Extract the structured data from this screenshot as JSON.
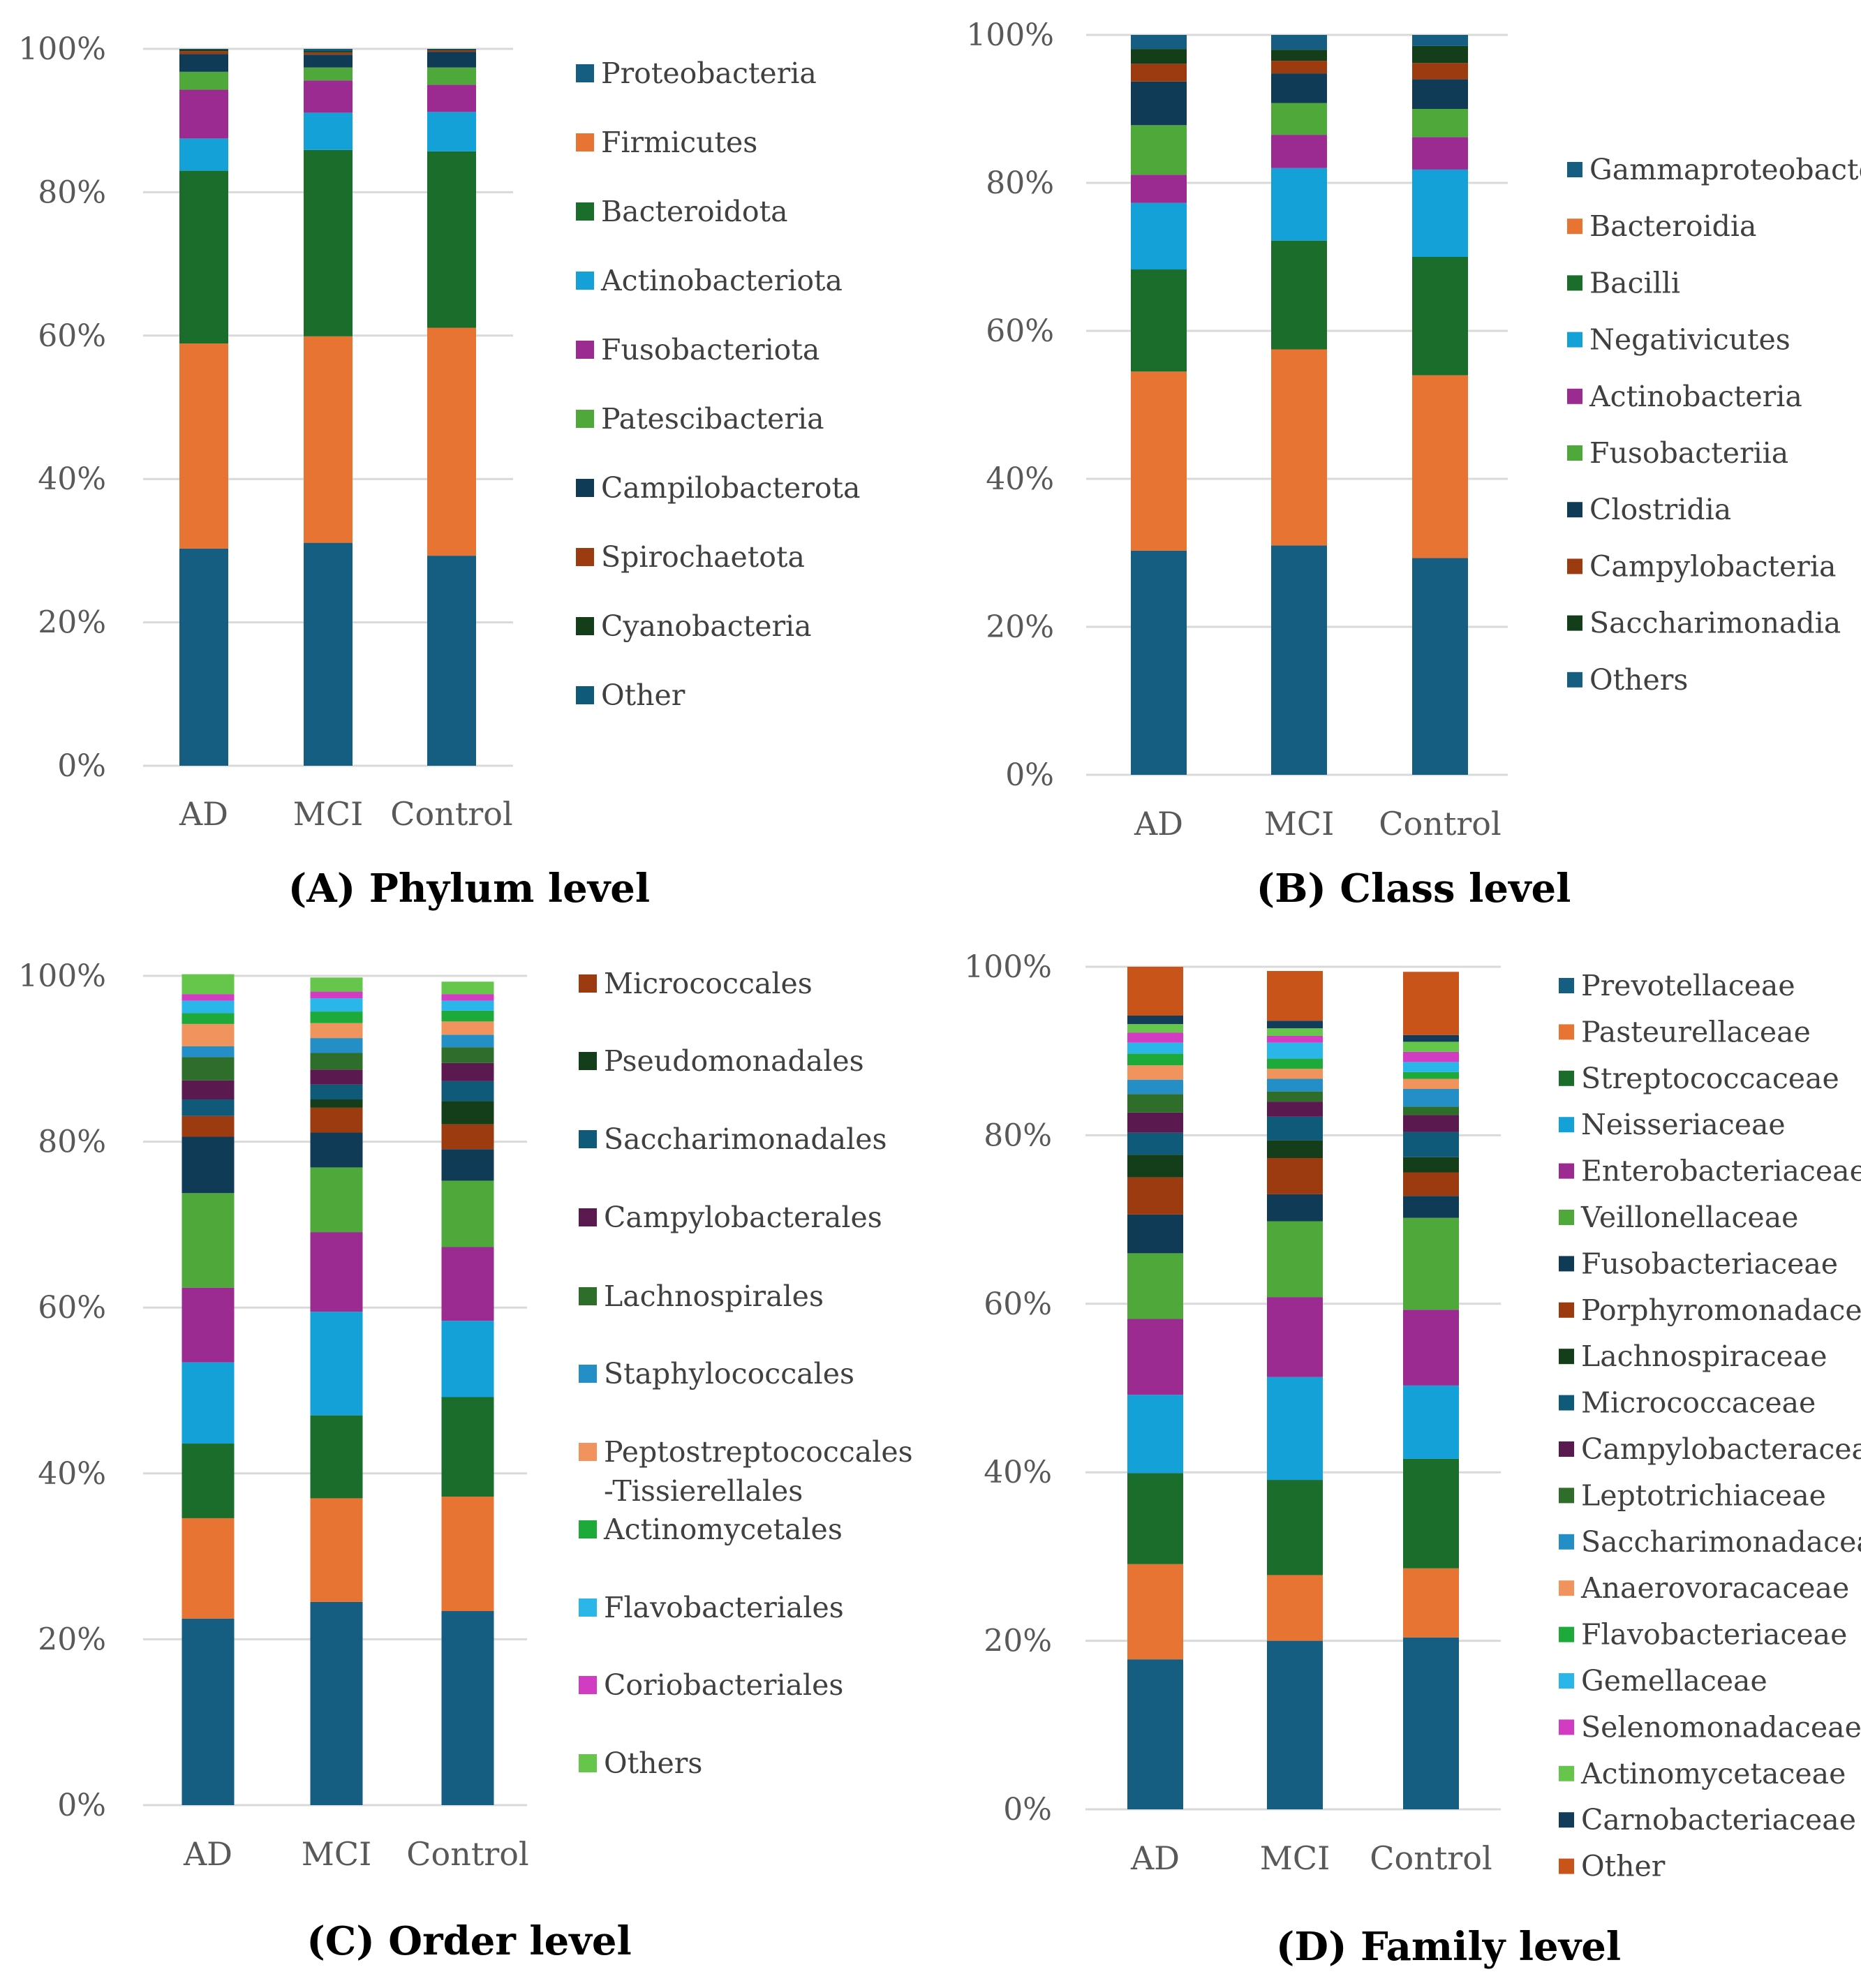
{
  "chart_data": [
    {
      "type": "bar",
      "stacked": true,
      "caption": "(A) Phylum level",
      "y_ticks": [
        "0%",
        "20%",
        "40%",
        "60%",
        "80%",
        "100%"
      ],
      "ylim": [
        0,
        100
      ],
      "categories": [
        "AD",
        "MCI",
        "Control"
      ],
      "series": [
        {
          "name": "Proteobacteria",
          "color": "#155e82",
          "values": [
            30.3,
            31.1,
            29.3
          ]
        },
        {
          "name": "Firmicutes",
          "color": "#e87433",
          "values": [
            28.6,
            28.8,
            31.8
          ]
        },
        {
          "name": "Bacteroidota",
          "color": "#1b6d2c",
          "values": [
            24.1,
            26.0,
            24.6
          ]
        },
        {
          "name": "Actinobacteriota",
          "color": "#13a1d8",
          "values": [
            4.5,
            5.2,
            5.5
          ]
        },
        {
          "name": "Fusobacteriota",
          "color": "#9c2b91",
          "values": [
            6.8,
            4.5,
            3.8
          ]
        },
        {
          "name": "Patescibacteria",
          "color": "#4fa83a",
          "values": [
            2.5,
            1.8,
            2.4
          ]
        },
        {
          "name": "Campilobacterota",
          "color": "#0f3b56",
          "values": [
            2.5,
            1.8,
            2.2
          ]
        },
        {
          "name": "Spirochaetota",
          "color": "#9c3a10",
          "values": [
            0.4,
            0.3,
            0.2
          ]
        },
        {
          "name": "Cyanobacteria",
          "color": "#143d1a",
          "values": [
            0.2,
            0.2,
            0.1
          ]
        },
        {
          "name": "Other",
          "color": "#105a79",
          "values": [
            0.1,
            0.3,
            0.1
          ]
        }
      ]
    },
    {
      "type": "bar",
      "stacked": true,
      "caption": "(B) Class level",
      "y_ticks": [
        "0%",
        "20%",
        "40%",
        "60%",
        "80%",
        "100%"
      ],
      "ylim": [
        0,
        100
      ],
      "categories": [
        "AD",
        "MCI",
        "Control"
      ],
      "series": [
        {
          "name": "Gammaproteobacteria",
          "color": "#155e82",
          "values": [
            30.3,
            31.0,
            29.3
          ]
        },
        {
          "name": "Bacteroidia",
          "color": "#e87433",
          "values": [
            24.2,
            26.5,
            24.7
          ]
        },
        {
          "name": "Bacilli",
          "color": "#1b6d2c",
          "values": [
            13.8,
            14.7,
            16.0
          ]
        },
        {
          "name": "Negativicutes",
          "color": "#13a1d8",
          "values": [
            9.0,
            9.8,
            11.8
          ]
        },
        {
          "name": "Actinobacteria",
          "color": "#9c2b91",
          "values": [
            3.8,
            4.5,
            4.4
          ]
        },
        {
          "name": "Fusobacteriia",
          "color": "#4fa83a",
          "values": [
            6.7,
            4.3,
            3.8
          ]
        },
        {
          "name": "Clostridia",
          "color": "#0f3b56",
          "values": [
            5.9,
            4.0,
            4.0
          ]
        },
        {
          "name": "Campylobacteria",
          "color": "#9c3a10",
          "values": [
            2.4,
            1.7,
            2.2
          ]
        },
        {
          "name": "Saccharimonadia",
          "color": "#143d1a",
          "values": [
            2.0,
            1.5,
            2.3
          ]
        },
        {
          "name": "Others",
          "color": "#155e82",
          "values": [
            1.9,
            2.0,
            1.5
          ]
        }
      ]
    },
    {
      "type": "bar",
      "stacked": true,
      "caption": "(C) Order level",
      "y_ticks": [
        "0%",
        "20%",
        "40%",
        "60%",
        "80%",
        "100%"
      ],
      "ylim": [
        0,
        100
      ],
      "categories": [
        "AD",
        "MCI",
        "Control"
      ],
      "series": [
        {
          "name": "Micrococcales",
          "color": "#9c3a10",
          "values": [
            2.5,
            3.0,
            3.0
          ]
        },
        {
          "name": "Pseudomonadales",
          "color": "#143d1a",
          "values": [
            0.0,
            1.0,
            2.8
          ]
        },
        {
          "name": "Saccharimonadales",
          "color": "#105a79",
          "values": [
            2.0,
            1.8,
            2.4
          ]
        },
        {
          "name": "Campylobacterales",
          "color": "#5a1a50",
          "values": [
            2.3,
            1.8,
            2.2
          ]
        },
        {
          "name": "Lachnospirales",
          "color": "#2f6e2a",
          "values": [
            2.8,
            2.0,
            1.9
          ]
        },
        {
          "name": "Staphylococcales",
          "color": "#238fc6",
          "values": [
            1.3,
            1.8,
            1.5
          ]
        },
        {
          "name": "Peptostreptococcales-Tissierellales",
          "color": "#f0935c",
          "values": [
            2.7,
            1.8,
            1.6
          ]
        },
        {
          "name": "Actinomycetales",
          "color": "#1eaa3b",
          "values": [
            1.3,
            1.4,
            1.3
          ]
        },
        {
          "name": "Flavobacteriales",
          "color": "#2bb6ea",
          "values": [
            1.5,
            1.6,
            1.2
          ]
        },
        {
          "name": "Coriobacteriales",
          "color": "#d23cc2",
          "values": [
            0.8,
            0.8,
            0.8
          ]
        },
        {
          "name": "Others",
          "color": "#65c64b",
          "values": [
            2.4,
            1.7,
            1.5
          ]
        }
      ],
      "bottom_segments": [
        {
          "color": "#155e82",
          "values": [
            22.5,
            24.5,
            23.4
          ]
        },
        {
          "color": "#e87433",
          "values": [
            12.1,
            12.5,
            13.8
          ]
        },
        {
          "color": "#1b6d2c",
          "values": [
            9.0,
            10.0,
            12.0
          ]
        },
        {
          "color": "#13a1d8",
          "values": [
            9.8,
            12.5,
            9.2
          ]
        },
        {
          "color": "#9c2b91",
          "values": [
            9.0,
            9.6,
            8.9
          ]
        },
        {
          "color": "#4fa83a",
          "values": [
            11.4,
            7.8,
            8.0
          ]
        },
        {
          "color": "#0f3b56",
          "values": [
            6.8,
            4.2,
            3.8
          ]
        }
      ]
    },
    {
      "type": "bar",
      "stacked": true,
      "caption": "(D) Family level",
      "y_ticks": [
        "0%",
        "20%",
        "40%",
        "60%",
        "80%",
        "100%"
      ],
      "ylim": [
        0,
        100
      ],
      "categories": [
        "AD",
        "MCI",
        "Control"
      ],
      "series": [
        {
          "name": "Prevotellaceae",
          "color": "#155e82",
          "values": [
            17.8,
            20.0,
            20.4
          ]
        },
        {
          "name": "Pasteurellaceae",
          "color": "#e87433",
          "values": [
            11.3,
            7.8,
            8.2
          ]
        },
        {
          "name": "Streptococcaceae",
          "color": "#1b6d2c",
          "values": [
            10.8,
            11.3,
            13.0
          ]
        },
        {
          "name": "Neisseriaceae",
          "color": "#13a1d8",
          "values": [
            9.3,
            12.2,
            8.7
          ]
        },
        {
          "name": "Enterobacteriaceae",
          "color": "#9c2b91",
          "values": [
            9.0,
            9.5,
            9.0
          ]
        },
        {
          "name": "Veillonellaceae",
          "color": "#4fa83a",
          "values": [
            7.8,
            9.0,
            10.9
          ]
        },
        {
          "name": "Fusobacteriaceae",
          "color": "#0f3b56",
          "values": [
            4.6,
            3.2,
            2.6
          ]
        },
        {
          "name": "Porphyromonadaceae",
          "color": "#9c3a10",
          "values": [
            4.4,
            4.3,
            2.8
          ]
        },
        {
          "name": "Lachnospiraceae",
          "color": "#143d1a",
          "values": [
            2.7,
            2.1,
            1.8
          ]
        },
        {
          "name": "Micrococcaceae",
          "color": "#105a79",
          "values": [
            2.6,
            2.8,
            3.0
          ]
        },
        {
          "name": "Campylobacteraceae",
          "color": "#5a1a50",
          "values": [
            2.4,
            1.8,
            2.0
          ]
        },
        {
          "name": "Leptotrichiaceae",
          "color": "#2f6e2a",
          "values": [
            2.2,
            1.2,
            1.0
          ]
        },
        {
          "name": "Saccharimonadaceae",
          "color": "#238fc6",
          "values": [
            1.7,
            1.5,
            2.1
          ]
        },
        {
          "name": "Anaerovoracaceae",
          "color": "#f0935c",
          "values": [
            1.7,
            1.2,
            1.2
          ]
        },
        {
          "name": "Flavobacteriaceae",
          "color": "#1eaa3b",
          "values": [
            1.4,
            1.2,
            0.8
          ]
        },
        {
          "name": "Gemellaceae",
          "color": "#2bb6ea",
          "values": [
            1.3,
            1.9,
            1.2
          ]
        },
        {
          "name": "Selenomonadaceae",
          "color": "#d23cc2",
          "values": [
            1.2,
            0.8,
            1.2
          ]
        },
        {
          "name": "Actinomycetaceae",
          "color": "#65c64b",
          "values": [
            1.0,
            0.9,
            1.2
          ]
        },
        {
          "name": "Carnobacteriaceae",
          "color": "#123c5a",
          "values": [
            1.0,
            0.9,
            0.8
          ]
        },
        {
          "name": "Other",
          "color": "#c9541a",
          "values": [
            5.8,
            5.9,
            7.5
          ]
        }
      ]
    }
  ]
}
